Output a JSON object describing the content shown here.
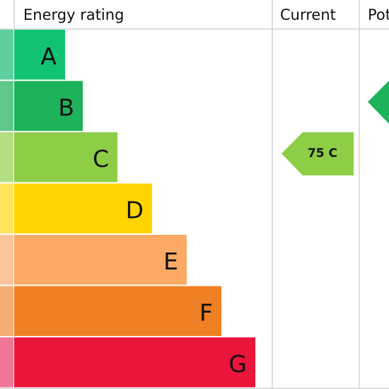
{
  "header": {
    "rating": "Energy rating",
    "current": "Current",
    "potential": "Potential"
  },
  "bands": [
    "A",
    "B",
    "C",
    "D",
    "E",
    "F",
    "G"
  ],
  "current": {
    "label": "75 C",
    "band": "C"
  },
  "potential": {
    "band": "B"
  }
}
